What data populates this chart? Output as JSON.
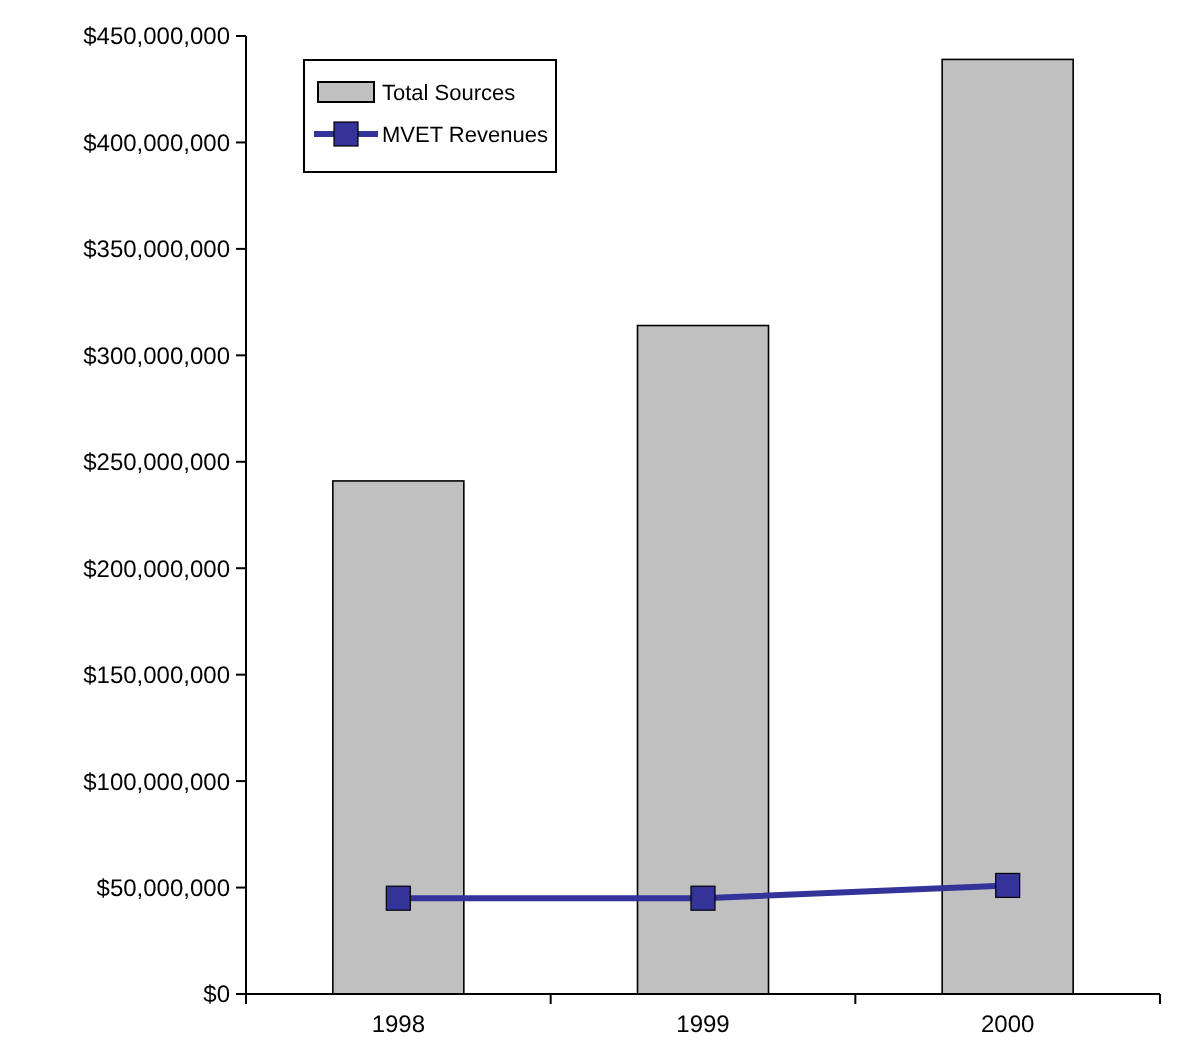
{
  "chart_data": {
    "type": "bar",
    "categories": [
      "1998",
      "1999",
      "2000"
    ],
    "series": [
      {
        "name": "Total Sources",
        "color": "#c0c0c0",
        "values": [
          241000000,
          314000000,
          439000000
        ]
      },
      {
        "name": "MVET Revenues",
        "type": "line",
        "color": "#333399",
        "values": [
          45000000,
          45000000,
          51000000
        ]
      }
    ],
    "ylim": [
      0,
      450000000
    ],
    "yticks": [
      {
        "value": 0,
        "label": "$0"
      },
      {
        "value": 50000000,
        "label": "$50,000,000"
      },
      {
        "value": 100000000,
        "label": "$100,000,000"
      },
      {
        "value": 150000000,
        "label": "$150,000,000"
      },
      {
        "value": 200000000,
        "label": "$200,000,000"
      },
      {
        "value": 250000000,
        "label": "$250,000,000"
      },
      {
        "value": 300000000,
        "label": "$300,000,000"
      },
      {
        "value": 350000000,
        "label": "$350,000,000"
      },
      {
        "value": 400000000,
        "label": "$400,000,000"
      },
      {
        "value": 450000000,
        "label": "$450,000,000"
      }
    ],
    "grid": false,
    "legend": "top left",
    "marker": "square",
    "line_style": "solid"
  }
}
